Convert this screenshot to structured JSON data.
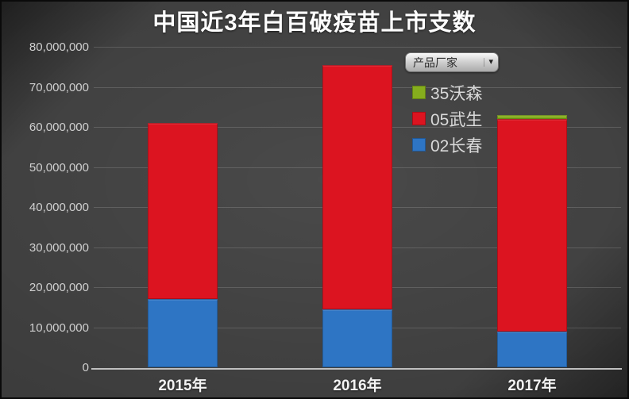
{
  "title": "中国近3年白百破疫苗上市支数",
  "colors": {
    "background": "#3c3c3c",
    "blue_changchun": "#2e75c4",
    "red_wusheng": "#dc1420",
    "green_walvax": "#85ad1d",
    "axis_line": "#bfbfbf",
    "grid_line": "rgba(255,255,255,0.15)",
    "title_text": "#ffffff",
    "tick_text": "#cfcfcf"
  },
  "legend": {
    "field_button": "产品厂家",
    "dropdown_arrow": "▾",
    "items": [
      {
        "label": "35沃森",
        "color": "#85ad1d"
      },
      {
        "label": "05武生",
        "color": "#dc1420"
      },
      {
        "label": "02长春",
        "color": "#2e75c4"
      }
    ]
  },
  "chart_data": {
    "type": "bar",
    "stacked": true,
    "title": "中国近3年白百破疫苗上市支数",
    "categories": [
      "2015年",
      "2016年",
      "2017年"
    ],
    "series": [
      {
        "name": "02长春",
        "color": "#2e75c4",
        "values": [
          17000000,
          14500000,
          9000000
        ]
      },
      {
        "name": "05武生",
        "color": "#dc1420",
        "values": [
          44000000,
          61000000,
          53000000
        ]
      },
      {
        "name": "35沃森",
        "color": "#85ad1d",
        "values": [
          0,
          0,
          1000000
        ]
      }
    ],
    "xlabel": "",
    "ylabel": "",
    "ylim": [
      0,
      80000000
    ],
    "ytick_interval": 10000000,
    "yticks": [
      {
        "value": 0,
        "label": "0"
      },
      {
        "value": 10000000,
        "label": "10,000,000"
      },
      {
        "value": 20000000,
        "label": "20,000,000"
      },
      {
        "value": 30000000,
        "label": "30,000,000"
      },
      {
        "value": 40000000,
        "label": "40,000,000"
      },
      {
        "value": 50000000,
        "label": "50,000,000"
      },
      {
        "value": 60000000,
        "label": "60,000,000"
      },
      {
        "value": 70000000,
        "label": "70,000,000"
      },
      {
        "value": 80000000,
        "label": "80,000,000"
      }
    ],
    "grid": true,
    "legend_position": "upper-right"
  }
}
